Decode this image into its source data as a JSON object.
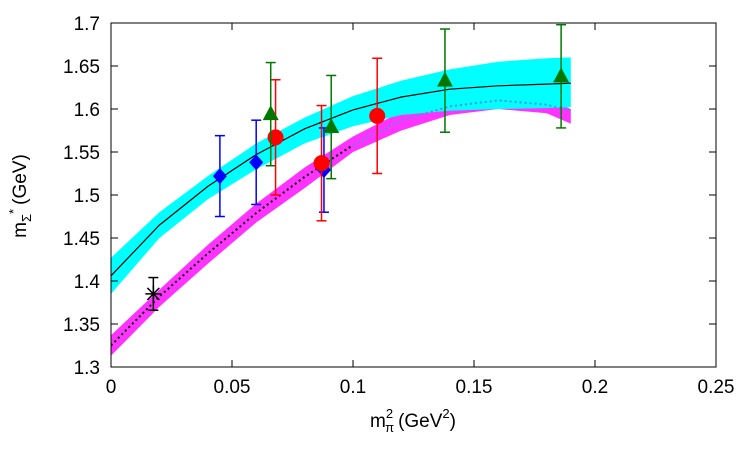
{
  "chart_data": {
    "type": "scatter",
    "xlabel": {
      "base": "m",
      "sub": "π",
      "sup": "2",
      "unit": "(GeV",
      "unit_sup": "2",
      "unit_end": ")"
    },
    "ylabel": {
      "base": "m",
      "sub": "Σ",
      "sup": "*",
      "unit": "(GeV)"
    },
    "xlim": [
      0,
      0.25
    ],
    "ylim": [
      1.3,
      1.7
    ],
    "x_ticks": [
      "0",
      "0.05",
      "0.1",
      "0.15",
      "0.2",
      "0.25"
    ],
    "x_tick_values": [
      0,
      0.05,
      0.1,
      0.15,
      0.2,
      0.25
    ],
    "y_ticks": [
      "1.3",
      "1.35",
      "1.4",
      "1.45",
      "1.5",
      "1.55",
      "1.6",
      "1.65",
      "1.7"
    ],
    "y_tick_values": [
      1.3,
      1.35,
      1.4,
      1.45,
      1.5,
      1.55,
      1.6,
      1.65,
      1.7
    ],
    "grid": false,
    "bands": [
      {
        "color": "#ff33ff",
        "x": [
          0,
          0.02,
          0.04,
          0.06,
          0.08,
          0.1,
          0.12,
          0.14,
          0.16,
          0.18,
          0.19
        ],
        "lower": [
          1.313,
          1.37,
          1.42,
          1.468,
          1.508,
          1.55,
          1.575,
          1.593,
          1.6,
          1.595,
          1.583
        ],
        "upper": [
          1.337,
          1.39,
          1.442,
          1.49,
          1.532,
          1.568,
          1.597,
          1.613,
          1.618,
          1.612,
          1.6
        ]
      },
      {
        "color": "#00ffff",
        "x": [
          0,
          0.02,
          0.04,
          0.06,
          0.08,
          0.1,
          0.12,
          0.14,
          0.16,
          0.18,
          0.19
        ],
        "lower": [
          1.385,
          1.45,
          1.495,
          1.53,
          1.56,
          1.58,
          1.593,
          1.598,
          1.6,
          1.601,
          1.602
        ],
        "upper": [
          1.427,
          1.48,
          1.522,
          1.56,
          1.59,
          1.615,
          1.633,
          1.646,
          1.655,
          1.659,
          1.66
        ]
      }
    ],
    "curves": [
      {
        "style": "solid",
        "color": "#000000",
        "x": [
          0,
          0.02,
          0.04,
          0.06,
          0.08,
          0.1,
          0.12,
          0.14,
          0.16,
          0.18,
          0.19
        ],
        "y": [
          1.406,
          1.465,
          1.51,
          1.547,
          1.577,
          1.599,
          1.614,
          1.623,
          1.627,
          1.629,
          1.63
        ]
      },
      {
        "style": "dotted",
        "color": "#000000",
        "x": [
          0,
          0.02,
          0.04,
          0.06,
          0.08,
          0.1
        ],
        "y": [
          1.325,
          1.382,
          1.432,
          1.479,
          1.521,
          1.558
        ]
      },
      {
        "style": "dotted",
        "color": "#4f8fdf",
        "x": [
          0.1,
          0.12,
          0.14,
          0.16,
          0.18,
          0.19
        ],
        "y": [
          1.558,
          1.587,
          1.603,
          1.61,
          1.605,
          1.598
        ]
      }
    ],
    "series": [
      {
        "marker": "diamond",
        "color": "#0000ff",
        "points": [
          {
            "x": 0.045,
            "y": 1.522,
            "err": 0.047
          },
          {
            "x": 0.06,
            "y": 1.538,
            "err": 0.049
          },
          {
            "x": 0.088,
            "y": 1.529,
            "err": 0.049
          }
        ]
      },
      {
        "marker": "circle",
        "color": "#ff0000",
        "points": [
          {
            "x": 0.068,
            "y": 1.567,
            "err": 0.067
          },
          {
            "x": 0.087,
            "y": 1.537,
            "err": 0.067
          },
          {
            "x": 0.11,
            "y": 1.592,
            "err": 0.067
          }
        ]
      },
      {
        "marker": "triangle",
        "color": "#007700",
        "points": [
          {
            "x": 0.066,
            "y": 1.594,
            "err": 0.06
          },
          {
            "x": 0.091,
            "y": 1.579,
            "err": 0.06
          },
          {
            "x": 0.138,
            "y": 1.633,
            "err": 0.06
          },
          {
            "x": 0.186,
            "y": 1.638,
            "err": 0.06
          }
        ]
      },
      {
        "marker": "star",
        "color": "#000000",
        "points": [
          {
            "x": 0.0175,
            "y": 1.385,
            "err": 0.019
          }
        ]
      }
    ]
  }
}
